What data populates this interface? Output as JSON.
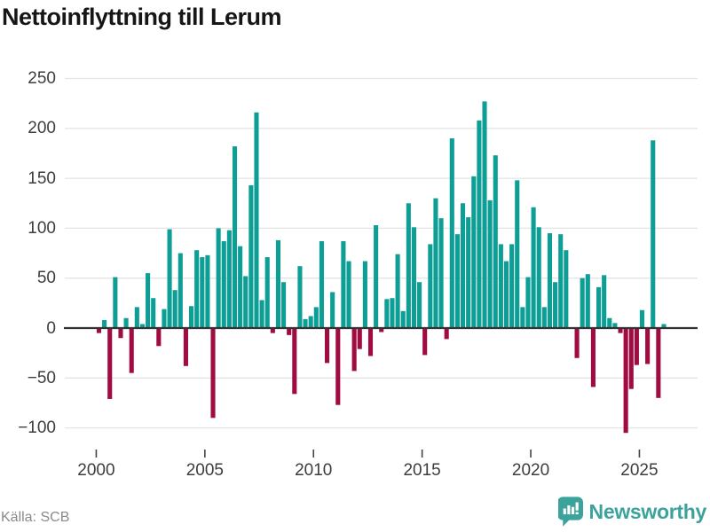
{
  "header": {
    "title": "Nettoinflyttning till Lerum"
  },
  "footer": {
    "source": "Källa: SCB",
    "brand": "Newsworthy"
  },
  "colors": {
    "positive_bar": "#0D9E96",
    "negative_bar": "#A00B41",
    "axis_line": "#333333",
    "gridline": "#E4E4E4",
    "tick_label": "#3D3D3D",
    "title_text": "#161616",
    "source_text": "#8A8A8A",
    "brand_teal": "#3BA39B"
  },
  "chart_data": {
    "type": "bar",
    "title": "Nettoinflyttning till Lerum",
    "source": "Källa: SCB",
    "frequency": "quarterly",
    "x_start": "2000 Q1",
    "x_tick_labels": [
      "2000",
      "2005",
      "2010",
      "2015",
      "2020",
      "2025"
    ],
    "y_ticks": [
      250,
      200,
      150,
      100,
      50,
      0,
      -50,
      -100
    ],
    "y_tick_labels": [
      "250",
      "200",
      "150",
      "100",
      "50",
      "0",
      "−50",
      "−100"
    ],
    "ylim": [
      -115,
      260
    ],
    "grid": true,
    "legend": false,
    "values": [
      -5,
      8,
      -71,
      51,
      -10,
      10,
      -45,
      21,
      4,
      55,
      30,
      -18,
      19,
      99,
      38,
      75,
      -38,
      22,
      78,
      71,
      73,
      -90,
      100,
      87,
      98,
      182,
      82,
      52,
      143,
      216,
      28,
      71,
      -5,
      88,
      46,
      -7,
      -66,
      62,
      9,
      12,
      21,
      87,
      -35,
      36,
      -77,
      87,
      67,
      -43,
      -21,
      67,
      -28,
      103,
      -4,
      29,
      30,
      74,
      17,
      125,
      101,
      46,
      -27,
      84,
      130,
      110,
      -11,
      190,
      94,
      125,
      111,
      152,
      208,
      227,
      128,
      173,
      84,
      67,
      84,
      148,
      21,
      51,
      121,
      101,
      21,
      95,
      46,
      94,
      78,
      0,
      -30,
      50,
      54,
      -59,
      41,
      53,
      10,
      5,
      -5,
      -105,
      -61,
      -37,
      18,
      -36,
      188,
      -70,
      4
    ]
  }
}
